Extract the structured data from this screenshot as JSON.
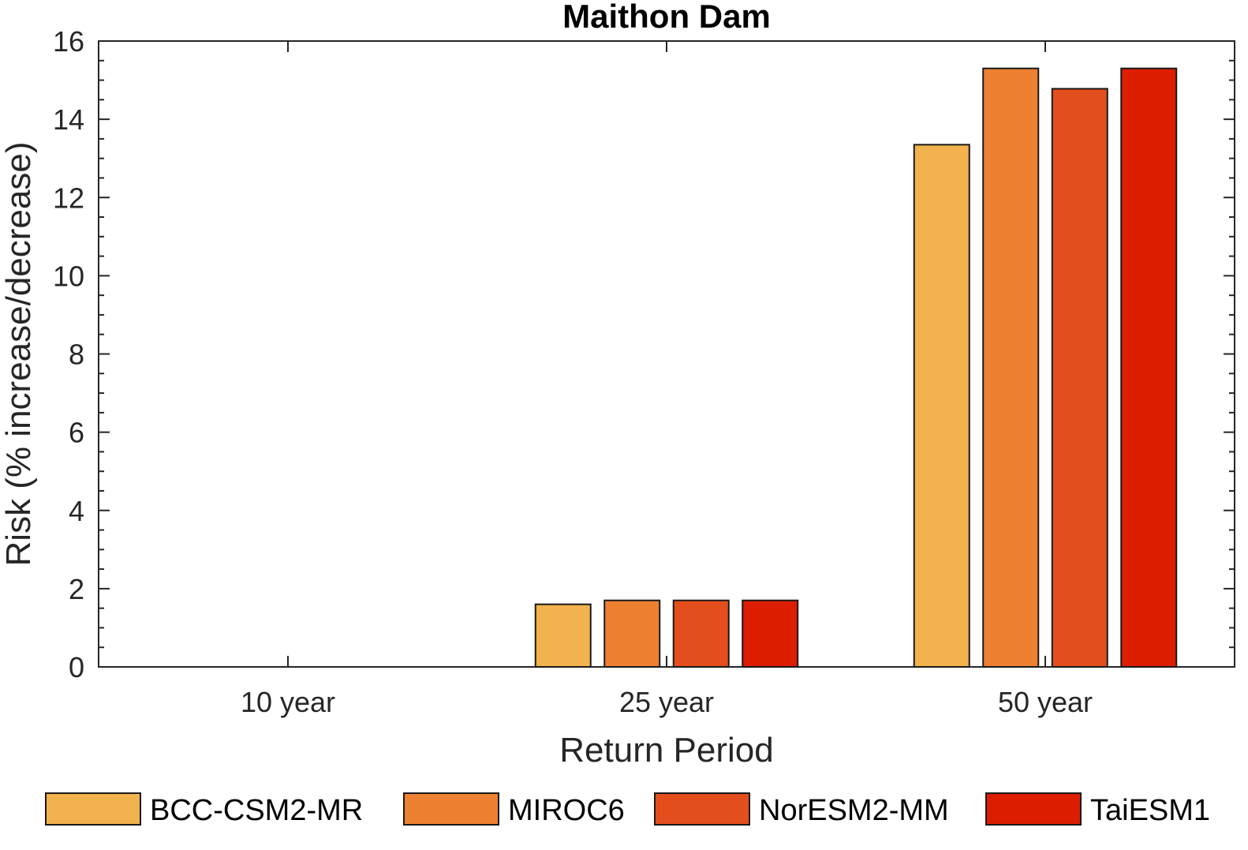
{
  "chart_data": {
    "type": "bar",
    "title": "Maithon Dam",
    "xlabel": "Return Period",
    "ylabel": "Risk (% increase/decrease)",
    "categories": [
      "10 year",
      "25 year",
      "50 year"
    ],
    "ylim": [
      0,
      16
    ],
    "yticks": [
      0,
      2,
      4,
      6,
      8,
      10,
      12,
      14,
      16
    ],
    "grid": false,
    "legend_placement": "bottom",
    "series": [
      {
        "name": "BCC-CSM2-MR",
        "color": "#F2B24D",
        "values": [
          0,
          1.6,
          13.35
        ]
      },
      {
        "name": "MIROC6",
        "color": "#EE8032",
        "values": [
          0,
          1.7,
          15.3
        ]
      },
      {
        "name": "NorESM2-MM",
        "color": "#E34E1C",
        "values": [
          0,
          1.7,
          14.78
        ]
      },
      {
        "name": "TaiESM1",
        "color": "#DC1D00",
        "values": [
          0,
          1.7,
          15.3
        ]
      }
    ]
  }
}
